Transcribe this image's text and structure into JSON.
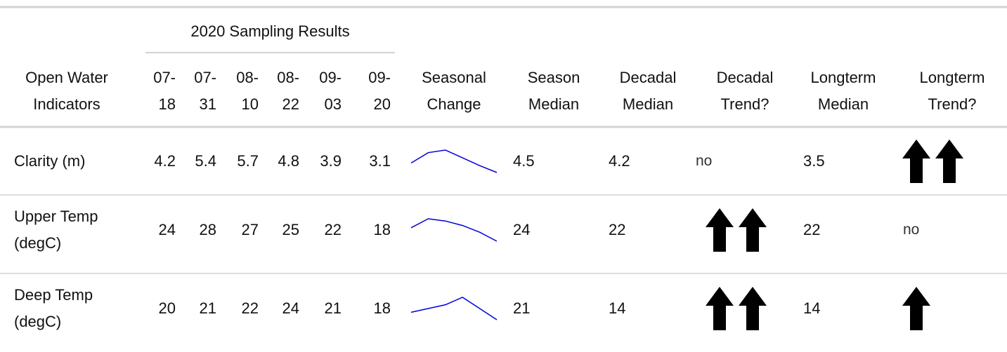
{
  "table": {
    "spanner": "2020 Sampling Results",
    "headers": {
      "indicator": "Open Water Indicators",
      "dates": [
        "07-18",
        "07-31",
        "08-10",
        "08-22",
        "09-03",
        "09-20"
      ],
      "seasonal_change": "Seasonal Change",
      "season_median": "Season Median",
      "decadal_median": "Decadal Median",
      "decadal_trend": "Decadal Trend?",
      "longterm_median": "Longterm Median",
      "longterm_trend": "Longterm Trend?"
    },
    "rows": [
      {
        "indicator": "Clarity (m)",
        "values": [
          4.2,
          5.4,
          5.7,
          4.8,
          3.9,
          3.1
        ],
        "season_median": 4.5,
        "decadal_median": 4.2,
        "decadal_trend": "no",
        "longterm_median": 3.5,
        "longterm_trend": 2
      },
      {
        "indicator": "Upper Temp (degC)",
        "values": [
          24,
          28,
          27,
          25,
          22,
          18
        ],
        "season_median": 24,
        "decadal_median": 22,
        "decadal_trend": 2,
        "longterm_median": 22,
        "longterm_trend": "no"
      },
      {
        "indicator": "Deep Temp (degC)",
        "values": [
          20,
          21,
          22,
          24,
          21,
          18
        ],
        "season_median": 21,
        "decadal_median": 14,
        "decadal_trend": 2,
        "longterm_median": 14,
        "longterm_trend": 1
      }
    ]
  }
}
